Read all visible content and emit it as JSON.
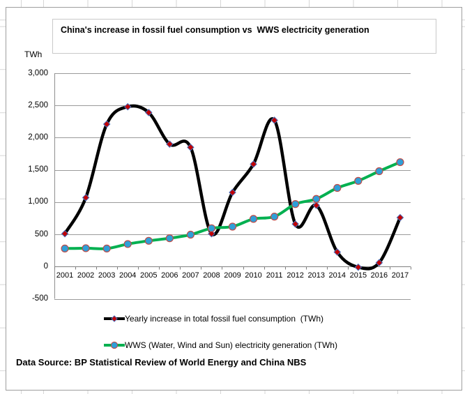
{
  "chart_data": {
    "type": "line",
    "title": "China's increase in fossil fuel consumption vs  WWS electricity generation",
    "y_axis_unit": "TWh",
    "ylim": [
      -500,
      3000
    ],
    "ytick_step": 500,
    "grid": true,
    "smoothed_lines": true,
    "legend_position": "bottom",
    "categories": [
      "2001",
      "2002",
      "2003",
      "2004",
      "2005",
      "2006",
      "2007",
      "2008",
      "2009",
      "2010",
      "2011",
      "2012",
      "2013",
      "2014",
      "2015",
      "2016",
      "2017"
    ],
    "series": [
      {
        "name": "Yearly increase in total fossil fuel consumption  (TWh)",
        "line_color": "#000000",
        "marker": "diamond",
        "marker_color": "#C00000",
        "marker_edge_color": "#4A6FBD",
        "values": [
          510,
          1070,
          2210,
          2480,
          2390,
          1900,
          1850,
          510,
          1150,
          1590,
          2270,
          660,
          950,
          225,
          -10,
          60,
          760
        ]
      },
      {
        "name": "WWS (Water, Wind and Sun) electricity generation (TWh)",
        "line_color": "#00B050",
        "marker": "circle",
        "marker_color": "#2F9FD8",
        "marker_edge_color": "#BE4B48",
        "values": [
          280,
          285,
          280,
          350,
          400,
          440,
          495,
          595,
          620,
          740,
          775,
          970,
          1050,
          1220,
          1330,
          1480,
          1620
        ]
      }
    ],
    "axis_color": "#8e8e8e",
    "gridline_color": "#9a9a9a"
  },
  "footer": {
    "source_text": "Data Source: BP Statistical Review of World Energy and China NBS"
  }
}
